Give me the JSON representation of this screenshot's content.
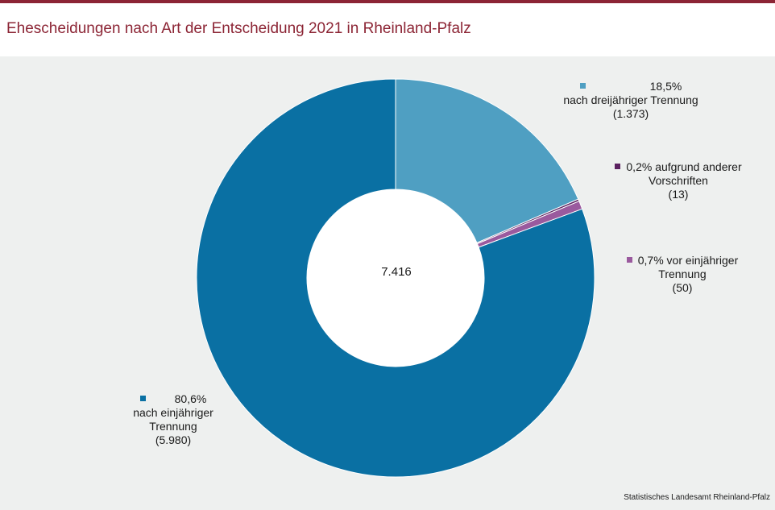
{
  "title": "Ehescheidungen nach Art der Entscheidung 2021 in Rheinland-Pfalz",
  "source": "Statistisches Landesamt Rheinland-Pfalz",
  "chart_data": {
    "type": "pie",
    "variant": "donut",
    "total_label": "7.416",
    "total": 7416,
    "start": "12 o'clock, clockwise",
    "slices": [
      {
        "label": "nach dreijähriger Trennung",
        "value": 1373,
        "percent_label": "18,5%",
        "count_label": "(1.373)",
        "color": "#4f9fc2"
      },
      {
        "label": "aufgrund anderer Vorschriften",
        "value": 13,
        "percent_label": "0,2%",
        "count_label": "(13)",
        "color": "#5b2260"
      },
      {
        "label": "vor einjähriger Trennung",
        "value": 50,
        "percent_label": "0,7%",
        "count_label": "(50)",
        "color": "#9a5a9e"
      },
      {
        "label": "nach einjähriger Trennung",
        "value": 5980,
        "percent_label": "80,6%",
        "count_label": "(5.980)",
        "color": "#0a70a3"
      }
    ]
  },
  "labels": {
    "s0": {
      "line1": "18,5%",
      "line2": "nach dreijähriger Trennung",
      "line3": "(1.373)"
    },
    "s1": {
      "line1": "0,2% aufgrund anderer",
      "line2": "Vorschriften",
      "line3": "(13)"
    },
    "s2": {
      "line1": "0,7% vor einjähriger",
      "line2": "Trennung",
      "line3": "(50)"
    },
    "s3": {
      "line1": "80,6%",
      "line2": "nach einjähriger",
      "line3": "Trennung",
      "line4": "(5.980)"
    }
  }
}
